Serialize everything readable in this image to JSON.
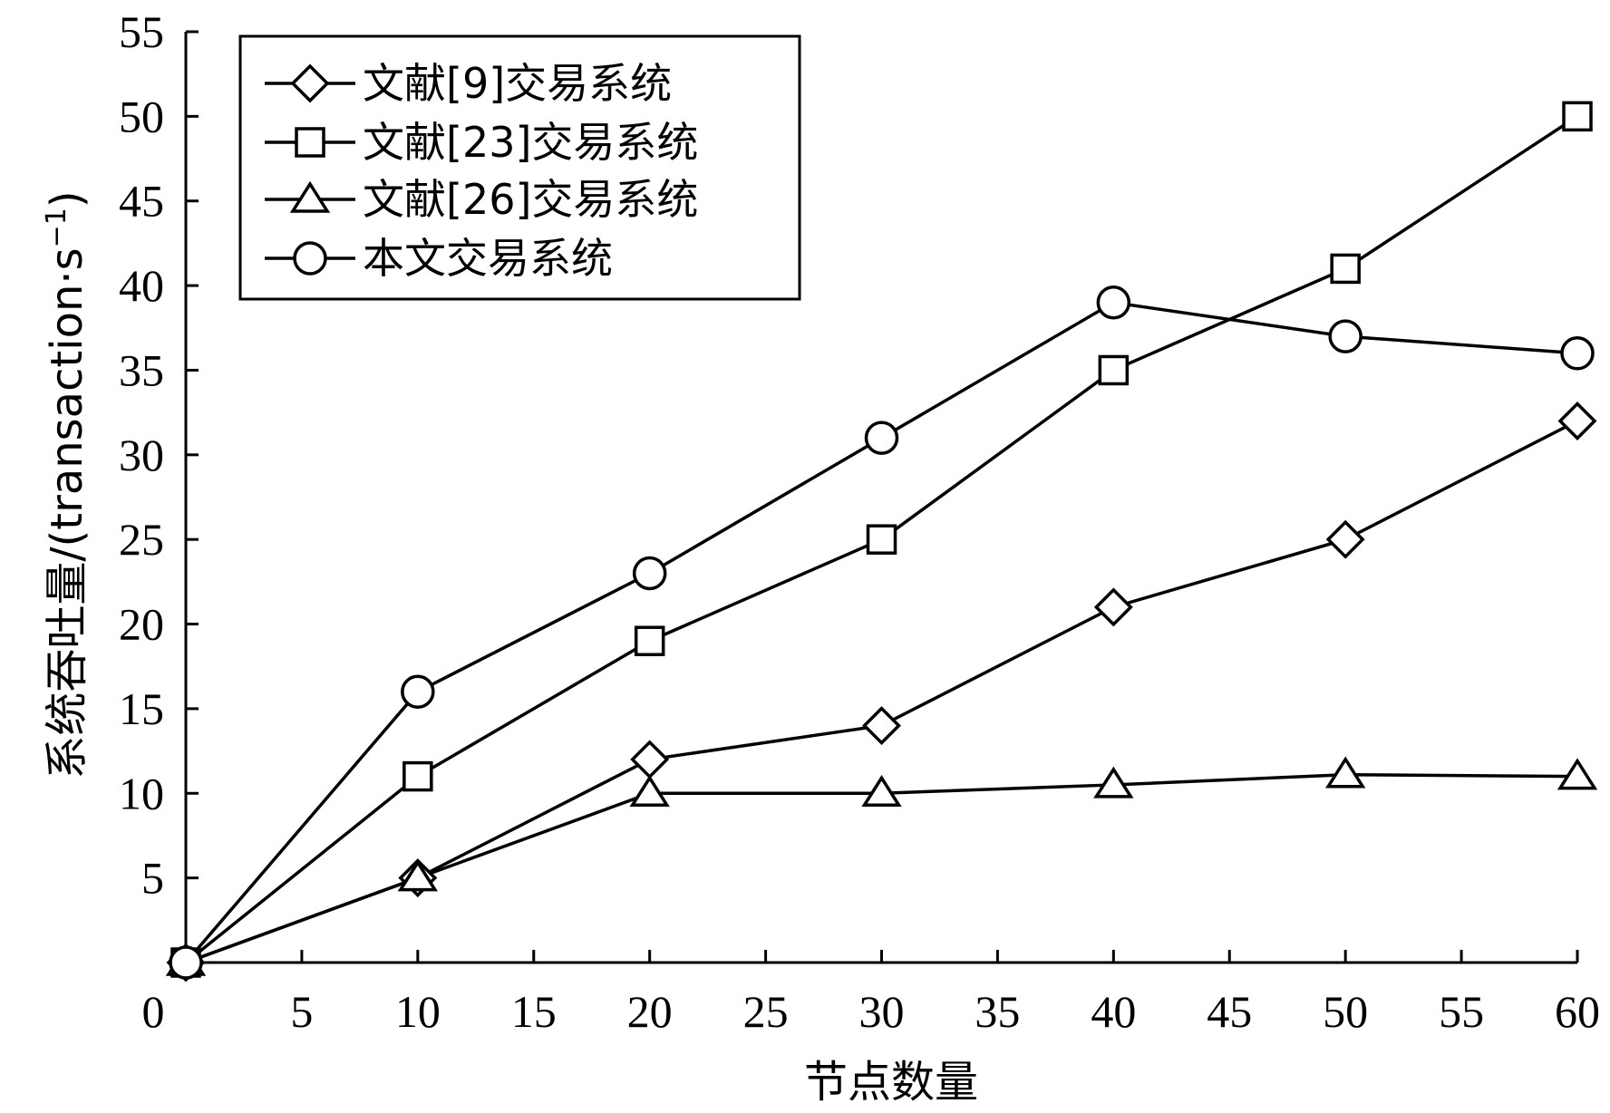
{
  "chart_data": {
    "type": "line",
    "xlabel": "节点数量",
    "ylabel": "系统吞吐量/(transaction·s",
    "ylabel_sup": "−1",
    "ylabel_close": ")",
    "xlim": [
      0,
      60
    ],
    "ylim": [
      0,
      55
    ],
    "x_ticks": [
      0,
      5,
      10,
      15,
      20,
      25,
      30,
      35,
      40,
      45,
      50,
      55,
      60
    ],
    "y_ticks": [
      5,
      10,
      15,
      20,
      25,
      30,
      35,
      40,
      45,
      50,
      55
    ],
    "x": [
      0,
      10,
      20,
      30,
      40,
      50,
      60
    ],
    "legend_position": "top-left",
    "grid": false,
    "series": [
      {
        "name": "文献[9]交易系统",
        "marker": "diamond",
        "values": [
          0,
          5,
          12,
          14,
          21,
          25,
          32
        ]
      },
      {
        "name": "文献[23]交易系统",
        "marker": "square",
        "values": [
          0,
          11,
          19,
          25,
          35,
          41,
          50
        ]
      },
      {
        "name": "文献[26]交易系统",
        "marker": "triangle",
        "values": [
          0,
          5,
          10,
          10,
          10.5,
          11.1,
          11
        ]
      },
      {
        "name": "本文交易系统",
        "marker": "circle",
        "values": [
          0,
          16,
          23,
          31,
          39,
          37,
          36
        ]
      }
    ]
  },
  "colors": {
    "ink": "#000000",
    "background": "#ffffff"
  }
}
